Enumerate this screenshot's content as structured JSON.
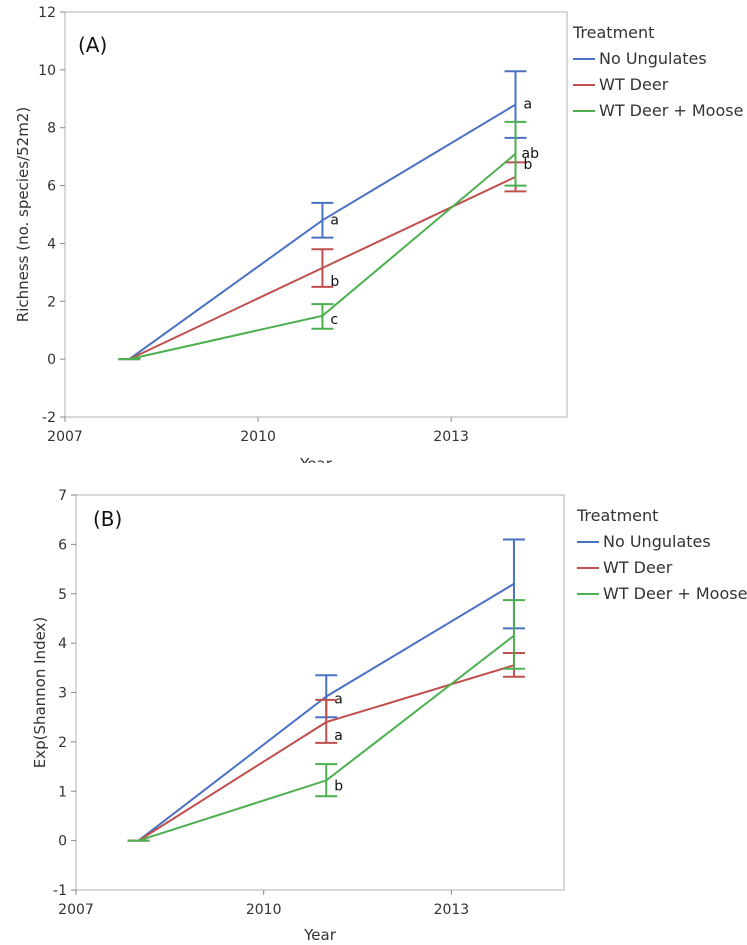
{
  "chart_data": [
    {
      "type": "line",
      "panel_label": "(A)",
      "xlabel": "Year",
      "ylabel": "Richness (no. species/52m2)",
      "xlim": [
        2007,
        2014.8
      ],
      "ylim": [
        -2,
        12
      ],
      "xticks": [
        2007,
        2010,
        2013
      ],
      "yticks": [
        -2,
        0,
        2,
        4,
        6,
        8,
        10,
        12
      ],
      "legend_title": "Treatment",
      "legend_position": "right",
      "x": [
        2008,
        2011,
        2014
      ],
      "series": [
        {
          "name": "No Ungulates",
          "color": "#4a72c4",
          "values": [
            0,
            4.8,
            8.8
          ],
          "err_low": [
            0,
            4.2,
            7.65
          ],
          "err_high": [
            0,
            5.4,
            9.95
          ],
          "sig": [
            "",
            "a",
            "a"
          ]
        },
        {
          "name": "WT Deer",
          "color": "#c0504d",
          "values": [
            0,
            3.15,
            6.3
          ],
          "err_low": [
            0,
            2.5,
            5.8
          ],
          "err_high": [
            0,
            3.8,
            6.8
          ],
          "sig": [
            "",
            "b",
            "b"
          ]
        },
        {
          "name": "WT Deer + Moose",
          "color": "#4caf50",
          "values": [
            0,
            1.5,
            7.1
          ],
          "err_low": [
            0,
            1.05,
            6.0
          ],
          "err_high": [
            0,
            1.9,
            8.2
          ],
          "sig": [
            "",
            "c",
            "ab"
          ]
        }
      ]
    },
    {
      "type": "line",
      "panel_label": "(B)",
      "xlabel": "Year",
      "ylabel": "Exp(Shannon Index)",
      "xlim": [
        2007,
        2014.8
      ],
      "ylim": [
        -1,
        7
      ],
      "xticks": [
        2007,
        2010,
        2013
      ],
      "yticks": [
        -1,
        0,
        1,
        2,
        3,
        4,
        5,
        6,
        7
      ],
      "legend_title": "Treatment",
      "legend_position": "right",
      "x": [
        2008,
        2011,
        2014
      ],
      "series": [
        {
          "name": "No Ungulates",
          "color": "#4a72c4",
          "values": [
            0,
            2.92,
            5.2
          ],
          "err_low": [
            0,
            2.5,
            4.3
          ],
          "err_high": [
            0,
            3.35,
            6.1
          ],
          "sig": [
            "",
            "a",
            ""
          ]
        },
        {
          "name": "WT Deer",
          "color": "#c0504d",
          "values": [
            0,
            2.4,
            3.55
          ],
          "err_low": [
            0,
            1.98,
            3.32
          ],
          "err_high": [
            0,
            2.85,
            3.8
          ],
          "sig": [
            "",
            "a",
            ""
          ]
        },
        {
          "name": "WT Deer + Moose",
          "color": "#4caf50",
          "values": [
            0,
            1.22,
            4.15
          ],
          "err_low": [
            0,
            0.9,
            3.48
          ],
          "err_high": [
            0,
            1.55,
            4.87
          ],
          "sig": [
            "",
            "b",
            ""
          ]
        }
      ]
    }
  ]
}
